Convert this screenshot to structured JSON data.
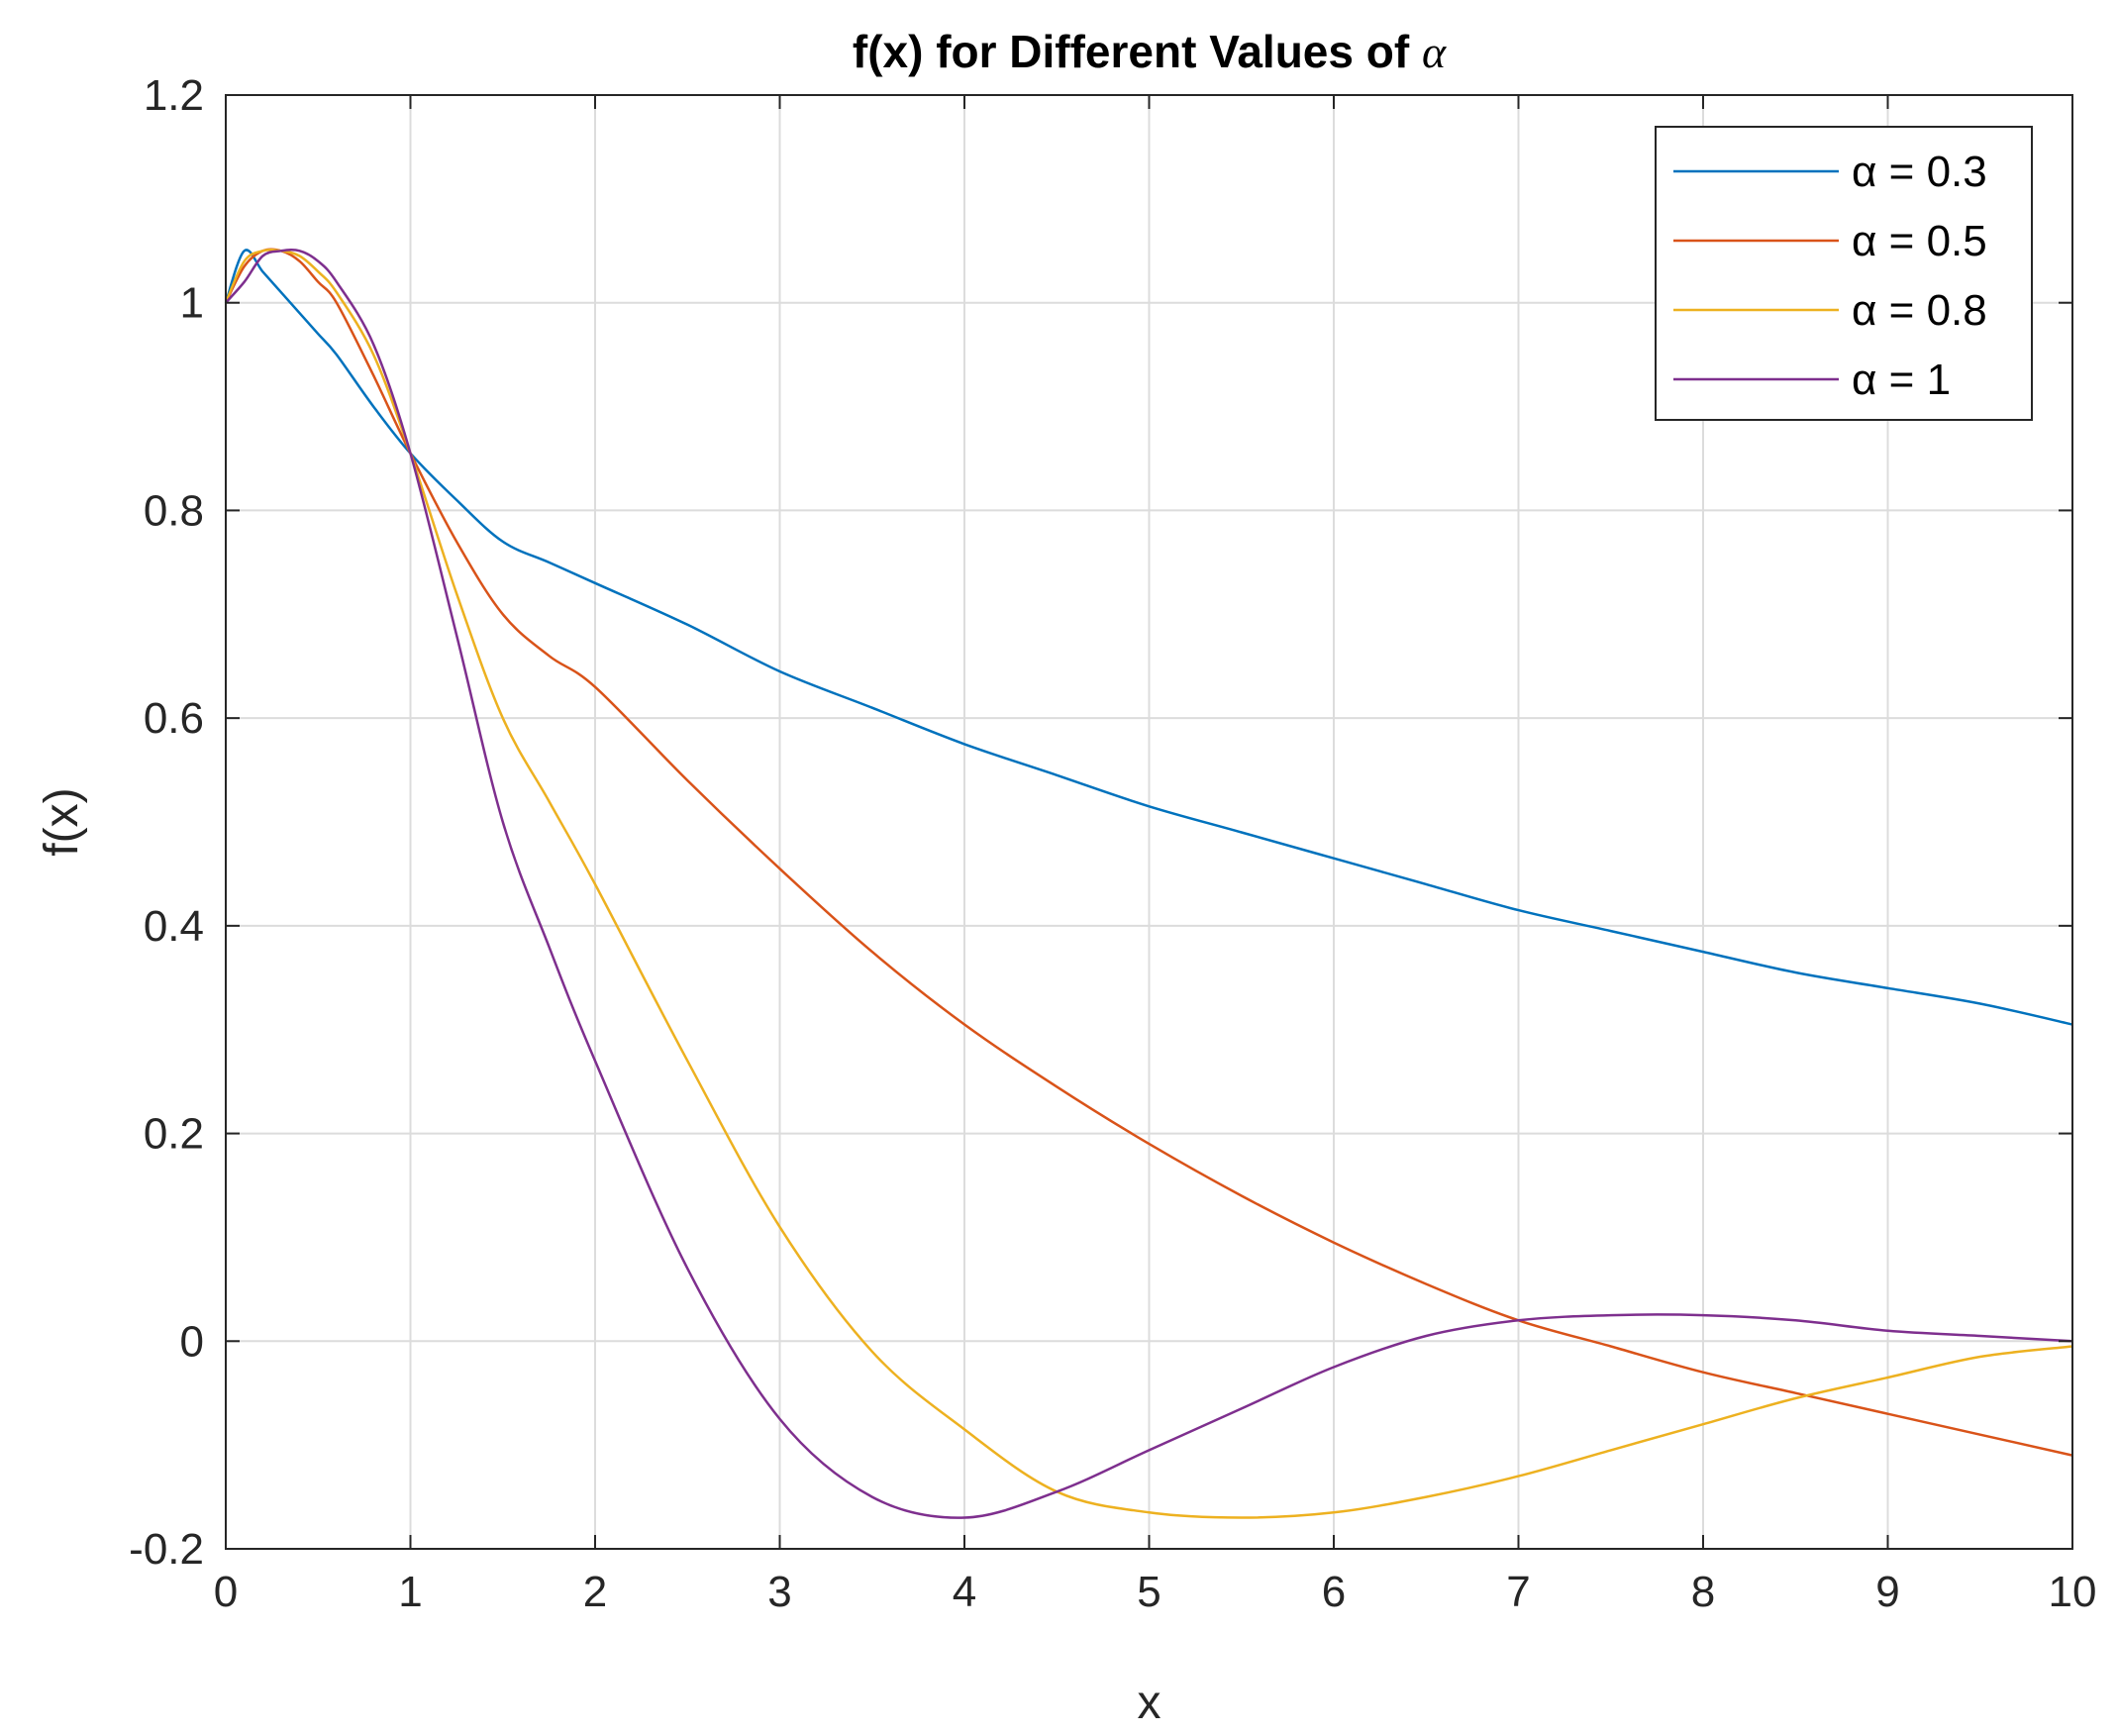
{
  "chart_data": {
    "type": "line",
    "title": "f(x) for Different Values of ",
    "title_symbol": "α",
    "xlabel": "x",
    "ylabel": "f(x)",
    "xlim": [
      0,
      10
    ],
    "ylim": [
      -0.2,
      1.2
    ],
    "xticks": [
      0,
      1,
      2,
      3,
      4,
      5,
      6,
      7,
      8,
      9,
      10
    ],
    "xtick_labels": [
      "0",
      "1",
      "2",
      "3",
      "4",
      "5",
      "6",
      "7",
      "8",
      "9",
      "10"
    ],
    "yticks": [
      -0.2,
      0,
      0.2,
      0.4,
      0.6,
      0.8,
      1,
      1.2
    ],
    "ytick_labels": [
      "-0.2",
      "0",
      "0.2",
      "0.4",
      "0.6",
      "0.8",
      "1",
      "1.2"
    ],
    "grid": true,
    "legend_position": "top-right",
    "x": [
      0,
      0.1,
      0.2,
      0.3,
      0.4,
      0.5,
      0.6,
      0.8,
      1,
      1.25,
      1.5,
      1.75,
      2,
      2.5,
      3,
      3.5,
      4,
      4.5,
      5,
      5.5,
      6,
      6.5,
      7,
      7.5,
      8,
      8.5,
      9,
      9.5,
      10
    ],
    "series": [
      {
        "name": "α = 0.3",
        "color": "#0072BD",
        "values": [
          1.0,
          1.05,
          1.03,
          1.01,
          0.99,
          0.97,
          0.95,
          0.9,
          0.855,
          0.81,
          0.77,
          0.75,
          0.73,
          0.69,
          0.645,
          0.61,
          0.575,
          0.545,
          0.515,
          0.49,
          0.465,
          0.44,
          0.415,
          0.395,
          0.375,
          0.355,
          0.34,
          0.325,
          0.305
        ]
      },
      {
        "name": "α = 0.5",
        "color": "#D95319",
        "values": [
          1.0,
          1.035,
          1.05,
          1.05,
          1.04,
          1.02,
          1.0,
          0.93,
          0.855,
          0.77,
          0.7,
          0.66,
          0.63,
          0.54,
          0.455,
          0.375,
          0.305,
          0.245,
          0.19,
          0.14,
          0.095,
          0.055,
          0.02,
          -0.005,
          -0.03,
          -0.05,
          -0.07,
          -0.09,
          -0.11
        ]
      },
      {
        "name": "α = 0.8",
        "color": "#EDB120",
        "values": [
          1.0,
          1.04,
          1.05,
          1.05,
          1.045,
          1.03,
          1.01,
          0.95,
          0.855,
          0.72,
          0.6,
          0.52,
          0.44,
          0.27,
          0.11,
          -0.01,
          -0.085,
          -0.145,
          -0.165,
          -0.17,
          -0.165,
          -0.15,
          -0.13,
          -0.105,
          -0.08,
          -0.055,
          -0.035,
          -0.015,
          -0.005
        ]
      },
      {
        "name": "α = 1",
        "color": "#7E2F8E",
        "values": [
          1.0,
          1.02,
          1.045,
          1.05,
          1.05,
          1.04,
          1.02,
          0.96,
          0.855,
          0.68,
          0.5,
          0.38,
          0.27,
          0.07,
          -0.075,
          -0.15,
          -0.17,
          -0.145,
          -0.105,
          -0.065,
          -0.025,
          0.005,
          0.02,
          0.025,
          0.025,
          0.02,
          0.01,
          0.005,
          0.0
        ]
      }
    ]
  }
}
